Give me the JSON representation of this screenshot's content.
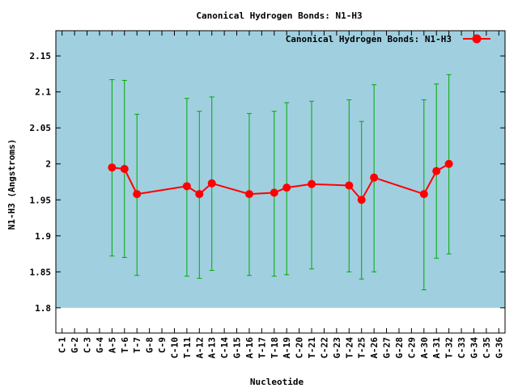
{
  "chart_data": {
    "type": "line",
    "title": "Canonical Hydrogen Bonds: N1-H3",
    "xlabel": "Nucleotide",
    "ylabel": "N1-H3 (Angstroms)",
    "ylim": [
      1.765,
      2.185
    ],
    "y_ticks": [
      1.8,
      1.85,
      1.9,
      1.95,
      2.0,
      2.05,
      2.1,
      2.15
    ],
    "y_tick_labels": [
      "1.8",
      "1.85",
      "1.9",
      "1.95",
      "2",
      "2.05",
      "2.1",
      "2.15"
    ],
    "shaded_band": [
      1.8,
      2.185
    ],
    "grid": false,
    "legend_position": "top-right",
    "categories": [
      "C-1",
      "G-2",
      "C-3",
      "G-4",
      "A-5",
      "T-6",
      "T-7",
      "G-8",
      "C-9",
      "C-10",
      "T-11",
      "A-12",
      "A-13",
      "C-14",
      "G-15",
      "A-16",
      "T-17",
      "T-18",
      "A-19",
      "C-20",
      "T-21",
      "C-22",
      "G-23",
      "T-24",
      "T-25",
      "A-26",
      "G-27",
      "G-28",
      "C-29",
      "A-30",
      "A-31",
      "T-32",
      "C-33",
      "G-34",
      "C-35",
      "G-36"
    ],
    "series": [
      {
        "name": "Canonical Hydrogen Bonds: N1-H3",
        "color": "#ff0000",
        "error_color": "#00aa00",
        "points": [
          {
            "x": "A-5",
            "y": 1.995,
            "low": 1.872,
            "high": 2.117
          },
          {
            "x": "T-6",
            "y": 1.993,
            "low": 1.87,
            "high": 2.116
          },
          {
            "x": "T-7",
            "y": 1.958,
            "low": 1.845,
            "high": 2.069
          },
          {
            "x": "T-11",
            "y": 1.969,
            "low": 1.844,
            "high": 2.091
          },
          {
            "x": "A-12",
            "y": 1.958,
            "low": 1.841,
            "high": 2.073
          },
          {
            "x": "A-13",
            "y": 1.973,
            "low": 1.852,
            "high": 2.093
          },
          {
            "x": "A-16",
            "y": 1.958,
            "low": 1.845,
            "high": 2.07
          },
          {
            "x": "T-18",
            "y": 1.96,
            "low": 1.844,
            "high": 2.073
          },
          {
            "x": "A-19",
            "y": 1.967,
            "low": 1.846,
            "high": 2.085
          },
          {
            "x": "T-21",
            "y": 1.972,
            "low": 1.854,
            "high": 2.087
          },
          {
            "x": "T-24",
            "y": 1.97,
            "low": 1.85,
            "high": 2.089
          },
          {
            "x": "T-25",
            "y": 1.95,
            "low": 1.84,
            "high": 2.059
          },
          {
            "x": "A-26",
            "y": 1.981,
            "low": 1.85,
            "high": 2.11
          },
          {
            "x": "A-30",
            "y": 1.958,
            "low": 1.825,
            "high": 2.089
          },
          {
            "x": "A-31",
            "y": 1.99,
            "low": 1.869,
            "high": 2.111
          },
          {
            "x": "T-32",
            "y": 2.0,
            "low": 1.875,
            "high": 2.124
          }
        ]
      }
    ],
    "colors": {
      "band": "#a0cfe0",
      "line": "#ff0000",
      "error_bars": "#00aa00",
      "axis": "#000000"
    }
  }
}
